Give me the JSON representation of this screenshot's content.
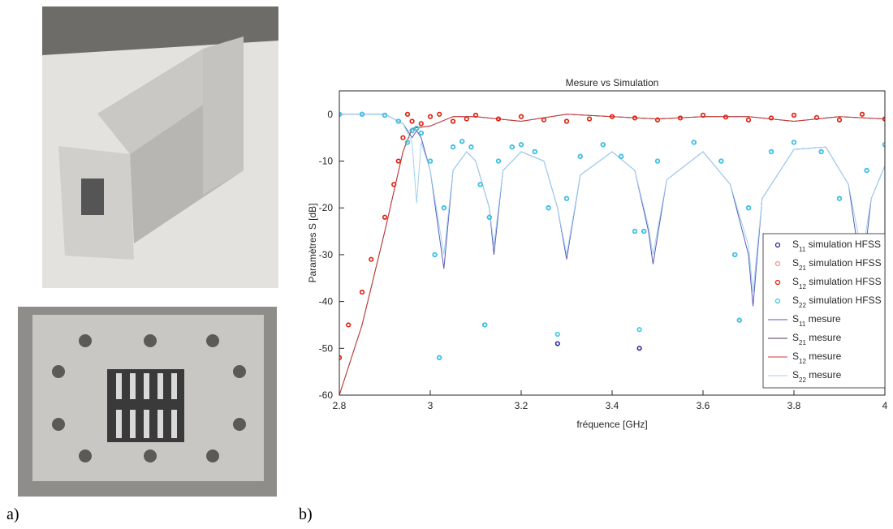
{
  "panel_labels": [
    "a)",
    "b)"
  ],
  "chart_data": {
    "type": "line",
    "title": "Mesure vs Simulation",
    "x_label": "fréquence [GHz]",
    "y_label": "Paramètres S [dB]",
    "xlim": [
      2.8,
      4
    ],
    "ylim": [
      -60,
      5
    ],
    "xticks": [
      2.8,
      3,
      3.2,
      3.4,
      3.6,
      3.8,
      4
    ],
    "yticks": [
      0,
      -10,
      -20,
      -30,
      -40,
      -50,
      -60
    ],
    "legend": "lower right",
    "series": [
      {
        "name": "S11 simulation HFSS",
        "color": "#2a2a90",
        "mode": "markers",
        "x": [
          2.8,
          2.85,
          2.9,
          2.93,
          2.95,
          2.96,
          2.97,
          2.98,
          3.0,
          3.01,
          3.02,
          3.03,
          3.05,
          3.07,
          3.09,
          3.11,
          3.12,
          3.13,
          3.15,
          3.18,
          3.2,
          3.23,
          3.26,
          3.28,
          3.3,
          3.33,
          3.38,
          3.42,
          3.45,
          3.46,
          3.47,
          3.5,
          3.58,
          3.64,
          3.67,
          3.68,
          3.7,
          3.75,
          3.8,
          3.86,
          3.9,
          3.93,
          3.96,
          4.0
        ],
        "values": [
          0,
          0,
          -0.2,
          -1.5,
          -6,
          -3.5,
          -3,
          -4,
          -10,
          -30,
          -52,
          -20,
          -7,
          -5.8,
          -7,
          -15,
          -45,
          -22,
          -10,
          -7,
          -6.5,
          -8,
          -20,
          -49,
          -18,
          -9,
          -6.5,
          -9,
          -25,
          -50,
          -25,
          -10,
          -6,
          -10,
          -30,
          -44,
          -20,
          -8,
          -6,
          -8,
          -18,
          -45,
          -12,
          -6.5
        ]
      },
      {
        "name": "S21 simulation HFSS",
        "color": "#e89a8a",
        "mode": "markers",
        "x": [
          2.8,
          2.85,
          2.9,
          2.93,
          2.95,
          2.97,
          3.0,
          3.05,
          3.1,
          3.15,
          3.2,
          3.3,
          3.4,
          3.5,
          3.6,
          3.7,
          3.8,
          3.9,
          3.95,
          4.0
        ],
        "values": [
          -52,
          -38,
          -22,
          -10,
          0,
          -3,
          -0.5,
          -1.5,
          -0.2,
          -1,
          -0.5,
          -1.5,
          -0.5,
          -1.2,
          -0.2,
          -1.2,
          -0.2,
          -1.2,
          0,
          -1
        ]
      },
      {
        "name": "S12 simulation HFSS",
        "color": "#e0200f",
        "mode": "markers",
        "x": [
          2.8,
          2.82,
          2.85,
          2.87,
          2.9,
          2.92,
          2.93,
          2.94,
          2.95,
          2.96,
          2.97,
          2.98,
          3.0,
          3.02,
          3.05,
          3.08,
          3.1,
          3.15,
          3.2,
          3.25,
          3.3,
          3.35,
          3.4,
          3.45,
          3.5,
          3.55,
          3.6,
          3.65,
          3.7,
          3.75,
          3.8,
          3.85,
          3.9,
          3.95,
          4.0
        ],
        "values": [
          -52,
          -45,
          -38,
          -31,
          -22,
          -15,
          -10,
          -5,
          0,
          -1.5,
          -3,
          -2,
          -0.5,
          0,
          -1.5,
          -1,
          -0.2,
          -1,
          -0.5,
          -1.2,
          -1.5,
          -1,
          -0.5,
          -0.8,
          -1.2,
          -0.8,
          -0.2,
          -0.6,
          -1.2,
          -0.8,
          -0.2,
          -0.7,
          -1.2,
          0,
          -1
        ]
      },
      {
        "name": "S22 simulation HFSS",
        "color": "#38cbe8",
        "mode": "markers",
        "x": [
          2.8,
          2.85,
          2.9,
          2.93,
          2.95,
          2.96,
          2.97,
          2.98,
          3.0,
          3.01,
          3.02,
          3.03,
          3.05,
          3.07,
          3.09,
          3.11,
          3.12,
          3.13,
          3.15,
          3.18,
          3.2,
          3.23,
          3.26,
          3.28,
          3.3,
          3.33,
          3.38,
          3.42,
          3.45,
          3.46,
          3.47,
          3.5,
          3.58,
          3.64,
          3.67,
          3.68,
          3.7,
          3.75,
          3.8,
          3.86,
          3.9,
          3.93,
          3.96,
          4.0
        ],
        "values": [
          0,
          0,
          -0.2,
          -1.5,
          -6,
          -3.5,
          -3,
          -4,
          -10,
          -30,
          -52,
          -20,
          -7,
          -5.8,
          -7,
          -15,
          -45,
          -22,
          -10,
          -7,
          -6.5,
          -8,
          -20,
          -47,
          -18,
          -9,
          -6.5,
          -9,
          -25,
          -46,
          -25,
          -10,
          -6,
          -10,
          -30,
          -44,
          -20,
          -8,
          -6,
          -8,
          -18,
          -45,
          -12,
          -6.5
        ]
      },
      {
        "name": "S11 mesure",
        "color": "#5a5ab8",
        "mode": "line",
        "x": [
          2.8,
          2.9,
          2.94,
          2.96,
          2.97,
          2.98,
          3.0,
          3.03,
          3.05,
          3.08,
          3.1,
          3.13,
          3.14,
          3.16,
          3.2,
          3.25,
          3.28,
          3.3,
          3.33,
          3.4,
          3.45,
          3.48,
          3.49,
          3.52,
          3.6,
          3.66,
          3.7,
          3.71,
          3.73,
          3.8,
          3.87,
          3.92,
          3.95,
          3.97,
          4.0
        ],
        "values": [
          0,
          0,
          -2,
          -5,
          -3.5,
          -5,
          -12,
          -33,
          -12,
          -8,
          -10,
          -20,
          -30,
          -12,
          -8,
          -10,
          -20,
          -31,
          -13,
          -8,
          -12,
          -25,
          -32,
          -14,
          -8,
          -15,
          -30,
          -41,
          -18,
          -7.5,
          -7,
          -15,
          -35,
          -18,
          -11
        ]
      },
      {
        "name": "S21 mesure",
        "color": "#4a3a4a",
        "mode": "line",
        "x": [
          2.8,
          2.85,
          2.9,
          2.94,
          2.96,
          3.0,
          3.05,
          3.1,
          3.2,
          3.3,
          3.4,
          3.5,
          3.6,
          3.7,
          3.8,
          3.9,
          4.0
        ],
        "values": [
          -60,
          -45,
          -25,
          -8,
          -3,
          -2.5,
          -0.5,
          -0.5,
          -1.5,
          0,
          -0.5,
          -1,
          -0.5,
          -0.5,
          -1.5,
          -0.5,
          -1
        ]
      },
      {
        "name": "S12 mesure",
        "color": "#cc3a3a",
        "mode": "line",
        "x": [
          2.8,
          2.85,
          2.9,
          2.94,
          2.96,
          3.0,
          3.05,
          3.1,
          3.2,
          3.3,
          3.4,
          3.5,
          3.6,
          3.7,
          3.8,
          3.9,
          4.0
        ],
        "values": [
          -60,
          -45,
          -25,
          -8,
          -3,
          -2.5,
          -0.5,
          -0.5,
          -1.5,
          0,
          -0.5,
          -1,
          -0.5,
          -0.5,
          -1.5,
          -0.5,
          -1
        ]
      },
      {
        "name": "S22 mesure",
        "color": "#9fd3f0",
        "mode": "line",
        "x": [
          2.8,
          2.9,
          2.94,
          2.96,
          2.97,
          2.98,
          3.0,
          3.03,
          3.05,
          3.08,
          3.1,
          3.13,
          3.14,
          3.16,
          3.2,
          3.25,
          3.28,
          3.3,
          3.33,
          3.4,
          3.45,
          3.48,
          3.49,
          3.52,
          3.6,
          3.66,
          3.7,
          3.71,
          3.73,
          3.8,
          3.87,
          3.92,
          3.95,
          3.97,
          4.0
        ],
        "values": [
          0,
          0,
          -2,
          -6,
          -19,
          -6,
          -12,
          -30,
          -12,
          -8,
          -10,
          -20,
          -28,
          -12,
          -8,
          -10,
          -20,
          -30,
          -13,
          -8,
          -12,
          -24,
          -30,
          -14,
          -8,
          -15,
          -28,
          -38,
          -18,
          -7.5,
          -7,
          -15,
          -30,
          -18,
          -11
        ]
      }
    ]
  }
}
